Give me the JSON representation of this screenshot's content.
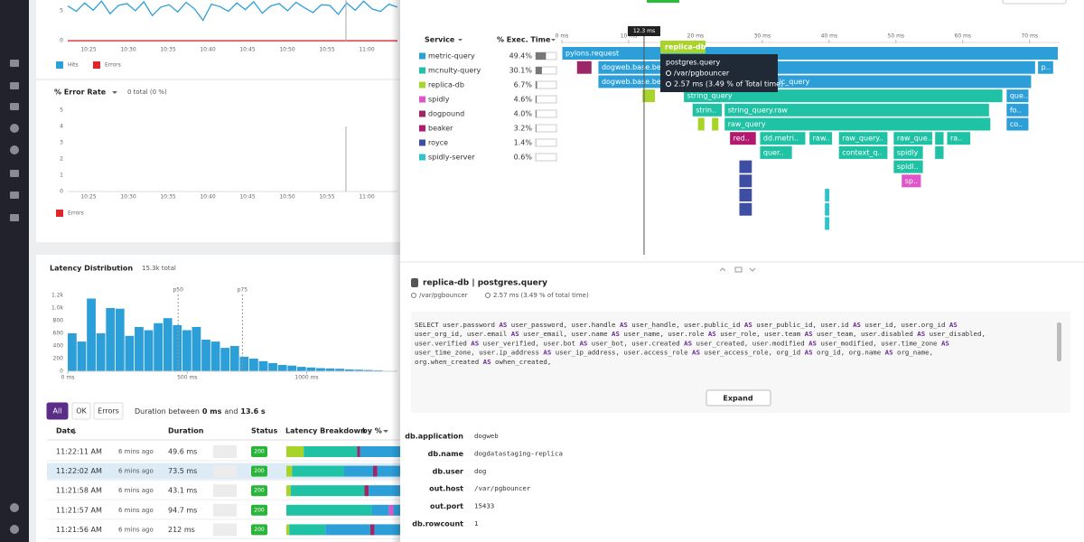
{
  "hits_chart": {
    "ylim": [
      0,
      6.8
    ],
    "yticks": [
      0,
      5
    ],
    "xtick_labels": [
      "10:25",
      "10:30",
      "10:35",
      "10:40",
      "10:45",
      "10:50",
      "10:55",
      "11:00"
    ],
    "legend": [
      {
        "name": "Hits",
        "color": "#2c9fd9"
      },
      {
        "name": "Errors",
        "color": "#e0262b"
      }
    ],
    "hits": [
      5.8,
      4.9,
      6.3,
      5.1,
      6.6,
      4.5,
      5.9,
      6.2,
      5.0,
      6.5,
      4.2,
      5.6,
      6.0,
      4.8,
      6.4,
      5.3,
      3.4,
      6.1,
      5.7,
      4.9,
      6.3,
      5.2,
      6.5,
      4.6,
      5.8,
      6.2,
      5.0,
      6.4,
      5.5,
      4.7,
      6.0,
      5.9,
      4.4,
      6.3,
      5.1,
      6.6,
      5.3,
      4.9,
      6.1,
      5.6
    ],
    "errors": [
      0,
      0,
      0,
      0,
      0,
      0,
      0,
      0,
      0,
      0,
      0,
      0,
      0,
      0,
      0,
      0,
      0,
      0,
      0,
      0,
      0,
      0,
      0,
      0,
      0,
      0,
      0,
      0,
      0,
      0,
      0,
      0,
      0,
      0,
      0,
      0,
      0,
      0,
      0,
      0
    ]
  },
  "error_rate": {
    "title": "% Error Rate",
    "summary": "0 total (0 %)",
    "ylim": [
      0,
      5
    ],
    "yticks": [
      0,
      1,
      2,
      3,
      4,
      5
    ],
    "xtick_labels": [
      "10:25",
      "10:30",
      "10:35",
      "10:40",
      "10:45",
      "10:50",
      "10:55",
      "11:00"
    ],
    "legend": {
      "name": "Errors",
      "color": "#e0262b"
    }
  },
  "latency": {
    "title": "Latency Distribution",
    "total": "15.3k total",
    "color": "#2c9fd9",
    "ylim": [
      0,
      1300
    ],
    "yticks": [
      0,
      200,
      400,
      600,
      800,
      {
        "value": 1000,
        "label": "1.0k"
      },
      {
        "value": 1200,
        "label": "1.2k"
      }
    ],
    "xlim": [
      0,
      1380
    ],
    "xticks": [
      {
        "value": 0,
        "label": "0 ms"
      },
      {
        "value": 500,
        "label": "500 ms"
      },
      {
        "value": 1000,
        "label": "1000 ms"
      }
    ],
    "bins": [
      0,
      40,
      80,
      120,
      160,
      200,
      240,
      280,
      320,
      360,
      400,
      440,
      480,
      520,
      560,
      600,
      640,
      680,
      720,
      760,
      800,
      840,
      880,
      920,
      960,
      1000,
      1040,
      1080,
      1120,
      1160,
      1200,
      1240,
      1280,
      1320
    ],
    "counts": [
      600,
      470,
      1150,
      600,
      1000,
      990,
      560,
      700,
      650,
      760,
      840,
      730,
      650,
      700,
      500,
      470,
      370,
      400,
      230,
      200,
      160,
      130,
      100,
      90,
      70,
      60,
      50,
      45,
      40,
      30,
      25,
      20,
      15
    ],
    "markers": [
      {
        "label": "p50",
        "value": 462
      },
      {
        "label": "p75",
        "value": 731
      }
    ]
  },
  "filters": {
    "buttons": [
      "All",
      "OK",
      "Errors"
    ],
    "text": "Duration between",
    "min": "0 ms",
    "and": "and",
    "max": "13.6 s"
  },
  "table": {
    "headers": [
      "Date",
      "Duration",
      "Status",
      "Latency Breakdown",
      "by %"
    ],
    "rows": [
      {
        "date": "11:22:11 AM",
        "ago": "6 mins ago",
        "duration": "49.6 ms",
        "status": "200",
        "breakdown": [
          {
            "service": 2,
            "pct": 12
          },
          {
            "service": 1,
            "pct": 37
          },
          {
            "service": 4,
            "pct": 2
          },
          {
            "service": 0,
            "pct": 49
          }
        ]
      },
      {
        "date": "11:22:02 AM",
        "ago": "6 mins ago",
        "duration": "73.5 ms",
        "status": "200",
        "breakdown": [
          {
            "service": 2,
            "pct": 4
          },
          {
            "service": 1,
            "pct": 36
          },
          {
            "service": 0,
            "pct": 20
          },
          {
            "service": 4,
            "pct": 3
          },
          {
            "service": 0,
            "pct": 37
          }
        ]
      },
      {
        "date": "11:21:58 AM",
        "ago": "6 mins ago",
        "duration": "43.1 ms",
        "status": "200",
        "breakdown": [
          {
            "service": 2,
            "pct": 3
          },
          {
            "service": 1,
            "pct": 51
          },
          {
            "service": 4,
            "pct": 3
          },
          {
            "service": 0,
            "pct": 43
          }
        ]
      },
      {
        "date": "11:21:57 AM",
        "ago": "6 mins ago",
        "duration": "94.7 ms",
        "status": "200",
        "breakdown": [
          {
            "service": 1,
            "pct": 59
          },
          {
            "service": 0,
            "pct": 12
          },
          {
            "service": 3,
            "pct": 3
          },
          {
            "service": 0,
            "pct": 26
          }
        ]
      },
      {
        "date": "11:21:56 AM",
        "ago": "6 mins ago",
        "duration": "212 ms",
        "status": "200",
        "breakdown": [
          {
            "service": 2,
            "pct": 2
          },
          {
            "service": 1,
            "pct": 25
          },
          {
            "service": 0,
            "pct": 31
          },
          {
            "service": 4,
            "pct": 3
          },
          {
            "service": 0,
            "pct": 39
          }
        ]
      }
    ]
  },
  "services": {
    "headers": [
      "Service",
      "% Exec. Time"
    ],
    "items": [
      {
        "name": "metric-query",
        "color": "#2c9fd9",
        "value": 49.4,
        "value_label": "49.4%"
      },
      {
        "name": "mcnulty-query",
        "color": "#1fc2a4",
        "value": 30.1,
        "value_label": "30.1%"
      },
      {
        "name": "replica-db",
        "color": "#a8d42a",
        "value": 6.7,
        "value_label": "6.7%"
      },
      {
        "name": "spidly",
        "color": "#e055c9",
        "value": 4.6,
        "value_label": "4.6%"
      },
      {
        "name": "dogpound",
        "color": "#9b2668",
        "value": 4.0,
        "value_label": "4.0%"
      },
      {
        "name": "beaker",
        "color": "#b3196f",
        "value": 3.2,
        "value_label": "3.2%"
      },
      {
        "name": "royce",
        "color": "#3e4fa3",
        "value": 1.4,
        "value_label": "1.4%"
      },
      {
        "name": "spidly-server",
        "color": "#2fc4c9",
        "value": 0.6,
        "value_label": "0.6%"
      }
    ]
  },
  "flame": {
    "xlim": [
      0,
      74.5
    ],
    "xticks": [
      {
        "value": 0,
        "label": "0 ms"
      },
      {
        "value": 10,
        "label": "10 ms"
      },
      {
        "value": 20,
        "label": "20 ms"
      },
      {
        "value": 30,
        "label": "30 ms"
      },
      {
        "value": 40,
        "label": "40 ms"
      },
      {
        "value": 50,
        "label": "50 ms"
      },
      {
        "value": 60,
        "label": "60 ms"
      },
      {
        "value": 70,
        "label": "70 ms"
      }
    ],
    "cursor": {
      "value": 12.3,
      "label": "12.3 ms"
    },
    "rows": [
      [
        {
          "label": "pylons.request",
          "start": 0,
          "dur": 74.3,
          "service": 0
        }
      ],
      [
        {
          "start": 2.2,
          "dur": 2.3,
          "service": 4
        },
        {
          "label": "dogweb.base.be",
          "start": 5.4,
          "dur": 9.7,
          "service": 0
        },
        {
          "start": 14.9,
          "dur": 56,
          "service": 0
        },
        {
          "label": "p..",
          "start": 71.2,
          "dur": 2.4,
          "service": 0
        }
      ],
      [
        {
          "label": "dogweb.base.be",
          "start": 5.4,
          "dur": 9.7,
          "service": 0
        },
        {
          "start": 14.9,
          "dur": 17.1,
          "service": 0
        },
        {
          "label": "ic_query",
          "start": 32.0,
          "dur": 38.3,
          "service": 0
        }
      ],
      [
        {
          "start": 12.0,
          "dur": 2.0,
          "service": 2
        },
        {
          "label": "string_query",
          "start": 18.2,
          "dur": 47.8,
          "service": 1
        },
        {
          "label": "que..",
          "start": 66.5,
          "dur": 3.4,
          "service": 0
        }
      ],
      [
        {
          "label": "strin..",
          "start": 19.5,
          "dur": 4.5,
          "service": 1
        },
        {
          "label": "string_query.raw",
          "start": 24.3,
          "dur": 39.7,
          "service": 1
        },
        {
          "label": "fo..",
          "start": 66.5,
          "dur": 3.4,
          "service": 0
        }
      ],
      [
        {
          "start": 20.3,
          "dur": 1.1,
          "service": 2
        },
        {
          "start": 22.4,
          "dur": 1.1,
          "service": 2
        },
        {
          "label": "raw_query",
          "start": 24.3,
          "dur": 39.9,
          "service": 1
        },
        {
          "label": "co..",
          "start": 66.5,
          "dur": 3.4,
          "service": 0
        }
      ],
      [
        {
          "label": "red..",
          "start": 25.1,
          "dur": 4.0,
          "service": 5
        },
        {
          "label": "dd.metri..",
          "start": 29.6,
          "dur": 6.9,
          "service": 1
        },
        {
          "label": "raw..",
          "start": 37.0,
          "dur": 3.5,
          "service": 1
        },
        {
          "label": "raw_query..",
          "start": 41.4,
          "dur": 7.4,
          "service": 1
        },
        {
          "label": "raw_que..",
          "start": 49.6,
          "dur": 5.9,
          "service": 1
        },
        {
          "start": 55.8,
          "dur": 1.4,
          "service": 1
        },
        {
          "label": "ra..",
          "start": 57.6,
          "dur": 3.6,
          "service": 1
        }
      ],
      [
        {
          "label": "quer..",
          "start": 29.6,
          "dur": 4.9,
          "service": 1
        },
        {
          "label": "context_q..",
          "start": 41.4,
          "dur": 7.4,
          "service": 1
        },
        {
          "label": "spidly",
          "start": 49.6,
          "dur": 4.5,
          "service": 1
        },
        {
          "start": 55.8,
          "dur": 1.4,
          "service": 1
        }
      ],
      [
        {
          "start": 26.5,
          "dur": 2.0,
          "service": 6
        },
        {
          "label": "spidl..",
          "start": 49.6,
          "dur": 4.5,
          "service": 1
        }
      ],
      [
        {
          "start": 26.5,
          "dur": 2.0,
          "service": 6
        },
        {
          "label": "sp..",
          "start": 50.8,
          "dur": 3.0,
          "service": 3
        }
      ],
      [
        {
          "start": 26.5,
          "dur": 2.0,
          "service": 6
        },
        {
          "start": 39.3,
          "dur": 0.8,
          "service": 7
        }
      ],
      [
        {
          "start": 26.5,
          "dur": 2.0,
          "service": 6
        },
        {
          "start": 39.3,
          "dur": 0.8,
          "service": 7
        }
      ],
      [
        {
          "start": 39.3,
          "dur": 0.8,
          "service": 7
        }
      ]
    ]
  },
  "tooltip": {
    "tag": "replica-db",
    "title": "postgres.query",
    "host": "/var/pgbouncer",
    "time": "2.57 ms (3.49 % of Total time)"
  },
  "detail": {
    "title": "replica-db | postgres.query",
    "host": "/var/pgbouncer",
    "time": "2.57 ms (3.49 % of total time)",
    "sql": [
      "SELECT user.password AS user_password, user.handle AS user_handle, user.public_id AS user_public_id, user.id AS user_id, user.org_id AS",
      "user_org_id, user.email AS user_email, user.name AS user_name, user.role AS user_role, user.team AS user_team, user.disabled AS user_disabled,",
      "user.verified AS user_verified, user.bot AS user_bot, user.created AS user_created, user.modified AS user_modified, user.time_zone AS",
      "user_time_zone, user.ip_address AS user_ip_address, user.access_role AS user_access_role, org_id AS org_id, org.name AS org_name,",
      "org.when_created AS owhen_created,"
    ],
    "button": "Expand",
    "meta": [
      {
        "key": "db.application",
        "value": "dogweb"
      },
      {
        "key": "db.name",
        "value": "dogdatastaging-replica"
      },
      {
        "key": "db.user",
        "value": "dog"
      },
      {
        "key": "out.host",
        "value": "/var/pgbouncer"
      },
      {
        "key": "out.port",
        "value": "15433"
      },
      {
        "key": "db.rowcount",
        "value": "1"
      }
    ]
  }
}
